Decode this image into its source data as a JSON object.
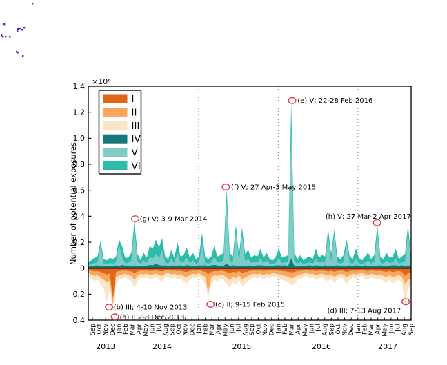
{
  "figure": {
    "description": "Stacked area time series of potential exposures by category, Sep 2013 - Sep 2017"
  },
  "chart_data": {
    "type": "area",
    "title": "",
    "ylabel": "Number of potential exposures",
    "y_scale_label": "×10⁶",
    "y_values_unit": "thousands (×10³); axis displayed in ×10⁶",
    "ylim": [
      -400,
      1400
    ],
    "grid": "dotted vertical lines at each January",
    "legend_position": "upper left",
    "yticks": [
      {
        "value": 1400,
        "label": "1.4"
      },
      {
        "value": 1200,
        "label": "1.2"
      },
      {
        "value": 1000,
        "label": "1.0"
      },
      {
        "value": 800,
        "label": "0.8"
      },
      {
        "value": 600,
        "label": "0.6"
      },
      {
        "value": 400,
        "label": "0.4"
      },
      {
        "value": 200,
        "label": "0.2"
      },
      {
        "value": 0,
        "label": "0"
      },
      {
        "value": -200,
        "label": "0.2"
      },
      {
        "value": -400,
        "label": "0.4"
      }
    ],
    "x_range": "Sep 2013 - Sep 2017",
    "month_tick_labels": [
      "Sep",
      "Oct",
      "Nov",
      "Dec",
      "Jan",
      "Feb",
      "Mar",
      "Apr",
      "May",
      "Jun",
      "Jul",
      "Aug",
      "Sep",
      "Oct",
      "Nov",
      "Dec",
      "Jan",
      "Feb",
      "Mar",
      "Apr",
      "May",
      "Jun",
      "Jul",
      "Aug",
      "Sep",
      "Oct",
      "Nov",
      "Dec",
      "Jan",
      "Feb",
      "Mar",
      "Apr",
      "May",
      "Jun",
      "Jul",
      "Aug",
      "Sep",
      "Oct",
      "Nov",
      "Dec",
      "Jan",
      "Feb",
      "Mar",
      "Apr",
      "May",
      "Jun",
      "Jul",
      "Aug",
      "Sep"
    ],
    "year_ticks": [
      {
        "label": "2013",
        "month_pos": 2
      },
      {
        "label": "2014",
        "month_pos": 10.5
      },
      {
        "label": "2015",
        "month_pos": 22.5
      },
      {
        "label": "2016",
        "month_pos": 34.5
      },
      {
        "label": "2017",
        "month_pos": 44.5
      }
    ],
    "year_gridlines_month_pos": [
      4,
      16,
      28,
      40
    ],
    "stacking": "Series I-III stacked downward below zero; series IV-VI stacked upward above zero",
    "series": [
      {
        "name": "I",
        "color": "#e2661a",
        "direction": "down",
        "values": [
          15,
          20,
          25,
          22,
          30,
          38,
          50,
          40,
          230,
          30,
          22,
          20,
          18,
          22,
          25,
          38,
          25,
          18,
          20,
          18,
          22,
          20,
          18,
          22,
          25,
          18,
          15,
          20,
          18,
          22,
          20,
          25,
          30,
          22,
          18,
          20,
          15,
          22,
          28,
          45,
          30,
          22,
          25,
          20,
          22,
          30,
          38,
          28,
          32,
          22,
          35,
          30,
          25,
          20,
          18,
          20,
          18,
          22,
          18,
          20,
          15,
          18,
          20,
          22,
          25,
          28,
          32,
          30,
          22,
          20,
          18,
          15,
          20,
          18,
          22,
          20,
          18,
          22,
          25,
          20,
          28,
          22,
          18,
          20,
          30,
          22,
          18,
          20,
          18,
          15,
          20,
          22,
          18,
          20,
          22,
          20,
          25,
          28,
          22,
          30,
          25,
          22,
          28,
          60,
          38,
          35
        ]
      },
      {
        "name": "II",
        "color": "#f9a65e",
        "direction": "down",
        "values": [
          21,
          28,
          35,
          32,
          42,
          52,
          55,
          56,
          50,
          42,
          32,
          28,
          24,
          32,
          35,
          52,
          35,
          24,
          28,
          24,
          32,
          28,
          24,
          32,
          35,
          24,
          21,
          28,
          24,
          32,
          28,
          35,
          42,
          32,
          24,
          28,
          21,
          32,
          38,
          140,
          42,
          32,
          35,
          28,
          32,
          42,
          52,
          38,
          46,
          32,
          49,
          42,
          35,
          28,
          24,
          28,
          24,
          32,
          24,
          28,
          21,
          24,
          28,
          32,
          35,
          38,
          46,
          42,
          32,
          28,
          24,
          21,
          28,
          24,
          32,
          28,
          24,
          32,
          35,
          28,
          38,
          32,
          24,
          28,
          42,
          32,
          24,
          28,
          24,
          21,
          28,
          32,
          24,
          28,
          32,
          28,
          35,
          38,
          32,
          42,
          35,
          32,
          38,
          60,
          52,
          49
        ]
      },
      {
        "name": "III",
        "color": "#fbe3c5",
        "direction": "down",
        "values": [
          24,
          32,
          40,
          36,
          48,
          60,
          155,
          64,
          50,
          48,
          36,
          32,
          28,
          36,
          40,
          60,
          40,
          28,
          32,
          28,
          36,
          32,
          28,
          36,
          40,
          28,
          24,
          32,
          28,
          36,
          32,
          40,
          48,
          36,
          28,
          32,
          24,
          36,
          44,
          45,
          48,
          36,
          40,
          32,
          36,
          48,
          60,
          44,
          52,
          36,
          56,
          48,
          40,
          32,
          28,
          32,
          28,
          36,
          28,
          32,
          24,
          28,
          32,
          36,
          40,
          44,
          52,
          48,
          36,
          32,
          28,
          24,
          32,
          28,
          36,
          32,
          28,
          36,
          40,
          32,
          44,
          36,
          28,
          32,
          48,
          36,
          28,
          32,
          28,
          24,
          32,
          36,
          28,
          32,
          36,
          32,
          40,
          44,
          36,
          48,
          40,
          36,
          44,
          180,
          60,
          56
        ]
      },
      {
        "name": "IV",
        "color": "#17787c",
        "direction": "up",
        "values": [
          12,
          15,
          20,
          22,
          15,
          18,
          15,
          20,
          18,
          22,
          15,
          25,
          20,
          20,
          18,
          20,
          17,
          15,
          18,
          20,
          25,
          22,
          33,
          24,
          20,
          22,
          18,
          21,
          20,
          20,
          22,
          15,
          24,
          20,
          18,
          18,
          22,
          20,
          22,
          18,
          22,
          25,
          22,
          15,
          18,
          35,
          18,
          22,
          20,
          15,
          20,
          17,
          21,
          20,
          15,
          22,
          22,
          20,
          18,
          18,
          15,
          22,
          22,
          20,
          22,
          15,
          75,
          18,
          18,
          15,
          15,
          20,
          22,
          18,
          22,
          20,
          15,
          22,
          18,
          17,
          18,
          22,
          18,
          15,
          15,
          22,
          18,
          22,
          20,
          15,
          22,
          18,
          18,
          15,
          20,
          22,
          18,
          18,
          20,
          22,
          22,
          18,
          22,
          17,
          20,
          22
        ]
      },
      {
        "name": "V",
        "color": "#7fccc6",
        "direction": "up",
        "values": [
          13,
          15,
          20,
          23,
          160,
          17,
          15,
          20,
          17,
          23,
          170,
          60,
          20,
          20,
          42,
          280,
          38,
          15,
          42,
          20,
          60,
          53,
          77,
          56,
          120,
          23,
          17,
          49,
          20,
          100,
          23,
          35,
          56,
          20,
          42,
          17,
          23,
          160,
          23,
          17,
          23,
          60,
          23,
          35,
          42,
          480,
          42,
          23,
          255,
          35,
          240,
          38,
          49,
          20,
          35,
          23,
          53,
          20,
          42,
          17,
          15,
          23,
          53,
          20,
          23,
          35,
          990,
          42,
          17,
          35,
          15,
          20,
          23,
          17,
          53,
          20,
          35,
          23,
          235,
          38,
          235,
          23,
          17,
          35,
          170,
          23,
          17,
          53,
          20,
          15,
          23,
          42,
          17,
          35,
          255,
          23,
          17,
          42,
          20,
          23,
          53,
          17,
          23,
          38,
          255,
          23
        ]
      },
      {
        "name": "VI",
        "color": "#2bbcab",
        "direction": "up",
        "values": [
          25,
          30,
          40,
          45,
          35,
          35,
          30,
          40,
          35,
          45,
          35,
          85,
          40,
          40,
          60,
          60,
          55,
          30,
          60,
          40,
          85,
          75,
          110,
          80,
          90,
          45,
          35,
          70,
          40,
          80,
          45,
          50,
          80,
          40,
          60,
          35,
          45,
          90,
          45,
          35,
          45,
          85,
          45,
          50,
          60,
          95,
          60,
          45,
          55,
          50,
          50,
          55,
          70,
          40,
          50,
          45,
          75,
          40,
          60,
          35,
          30,
          45,
          75,
          40,
          45,
          50,
          205,
          60,
          35,
          50,
          30,
          40,
          45,
          35,
          75,
          40,
          50,
          45,
          47,
          55,
          47,
          45,
          35,
          50,
          35,
          45,
          35,
          75,
          40,
          30,
          45,
          60,
          35,
          50,
          55,
          45,
          35,
          60,
          40,
          45,
          75,
          35,
          45,
          55,
          55,
          45
        ]
      }
    ],
    "annotation_circle_color": "#e03a4e",
    "annotations": [
      {
        "id": "a",
        "text": "(a) I; 2-8 Dec 2013",
        "circle_month": 3.4,
        "circle_value": -375,
        "text_month": 4.1,
        "text_value": -375,
        "anchor": "start"
      },
      {
        "id": "b",
        "text": "(b) III; 4-10 Nov 2013",
        "circle_month": 2.5,
        "circle_value": -300,
        "text_month": 3.2,
        "text_value": -300,
        "anchor": "start"
      },
      {
        "id": "c",
        "text": "(c) II; 9-15 Feb 2015",
        "circle_month": 17.8,
        "circle_value": -278,
        "text_month": 18.5,
        "text_value": -278,
        "anchor": "start"
      },
      {
        "id": "d",
        "text": "(d) III; 7-13 Aug 2017",
        "circle_month": 47.2,
        "circle_value": -258,
        "text_month": 46.5,
        "text_value": -325,
        "anchor": "end"
      },
      {
        "id": "e",
        "text": "(e) V; 22-28 Feb 2016",
        "circle_month": 30.1,
        "circle_value": 1290,
        "text_month": 30.9,
        "text_value": 1290,
        "anchor": "start"
      },
      {
        "id": "f",
        "text": "(f) V; 27 Apr-3 May 2015",
        "circle_month": 20.1,
        "circle_value": 625,
        "text_month": 20.9,
        "text_value": 625,
        "anchor": "start"
      },
      {
        "id": "g",
        "text": "(g) V; 3-9 Mar 2014",
        "circle_month": 6.45,
        "circle_value": 380,
        "text_month": 7.15,
        "text_value": 380,
        "anchor": "start"
      },
      {
        "id": "h",
        "text": "(h) V; 27 Mar-2 Apr 2017",
        "circle_month": 42.9,
        "circle_value": 350,
        "text_month": 48.0,
        "text_value": 400,
        "anchor": "end"
      }
    ]
  },
  "stray_marks": {
    "color": "#3636d8",
    "points": [
      [
        46,
        4
      ],
      [
        5,
        34
      ],
      [
        25,
        41
      ],
      [
        28,
        40
      ],
      [
        31,
        42
      ],
      [
        24,
        44
      ],
      [
        34,
        39
      ],
      [
        1,
        50
      ],
      [
        3,
        52
      ],
      [
        7,
        52
      ],
      [
        13,
        52
      ],
      [
        23,
        74
      ],
      [
        25,
        75
      ],
      [
        32,
        80
      ]
    ]
  }
}
